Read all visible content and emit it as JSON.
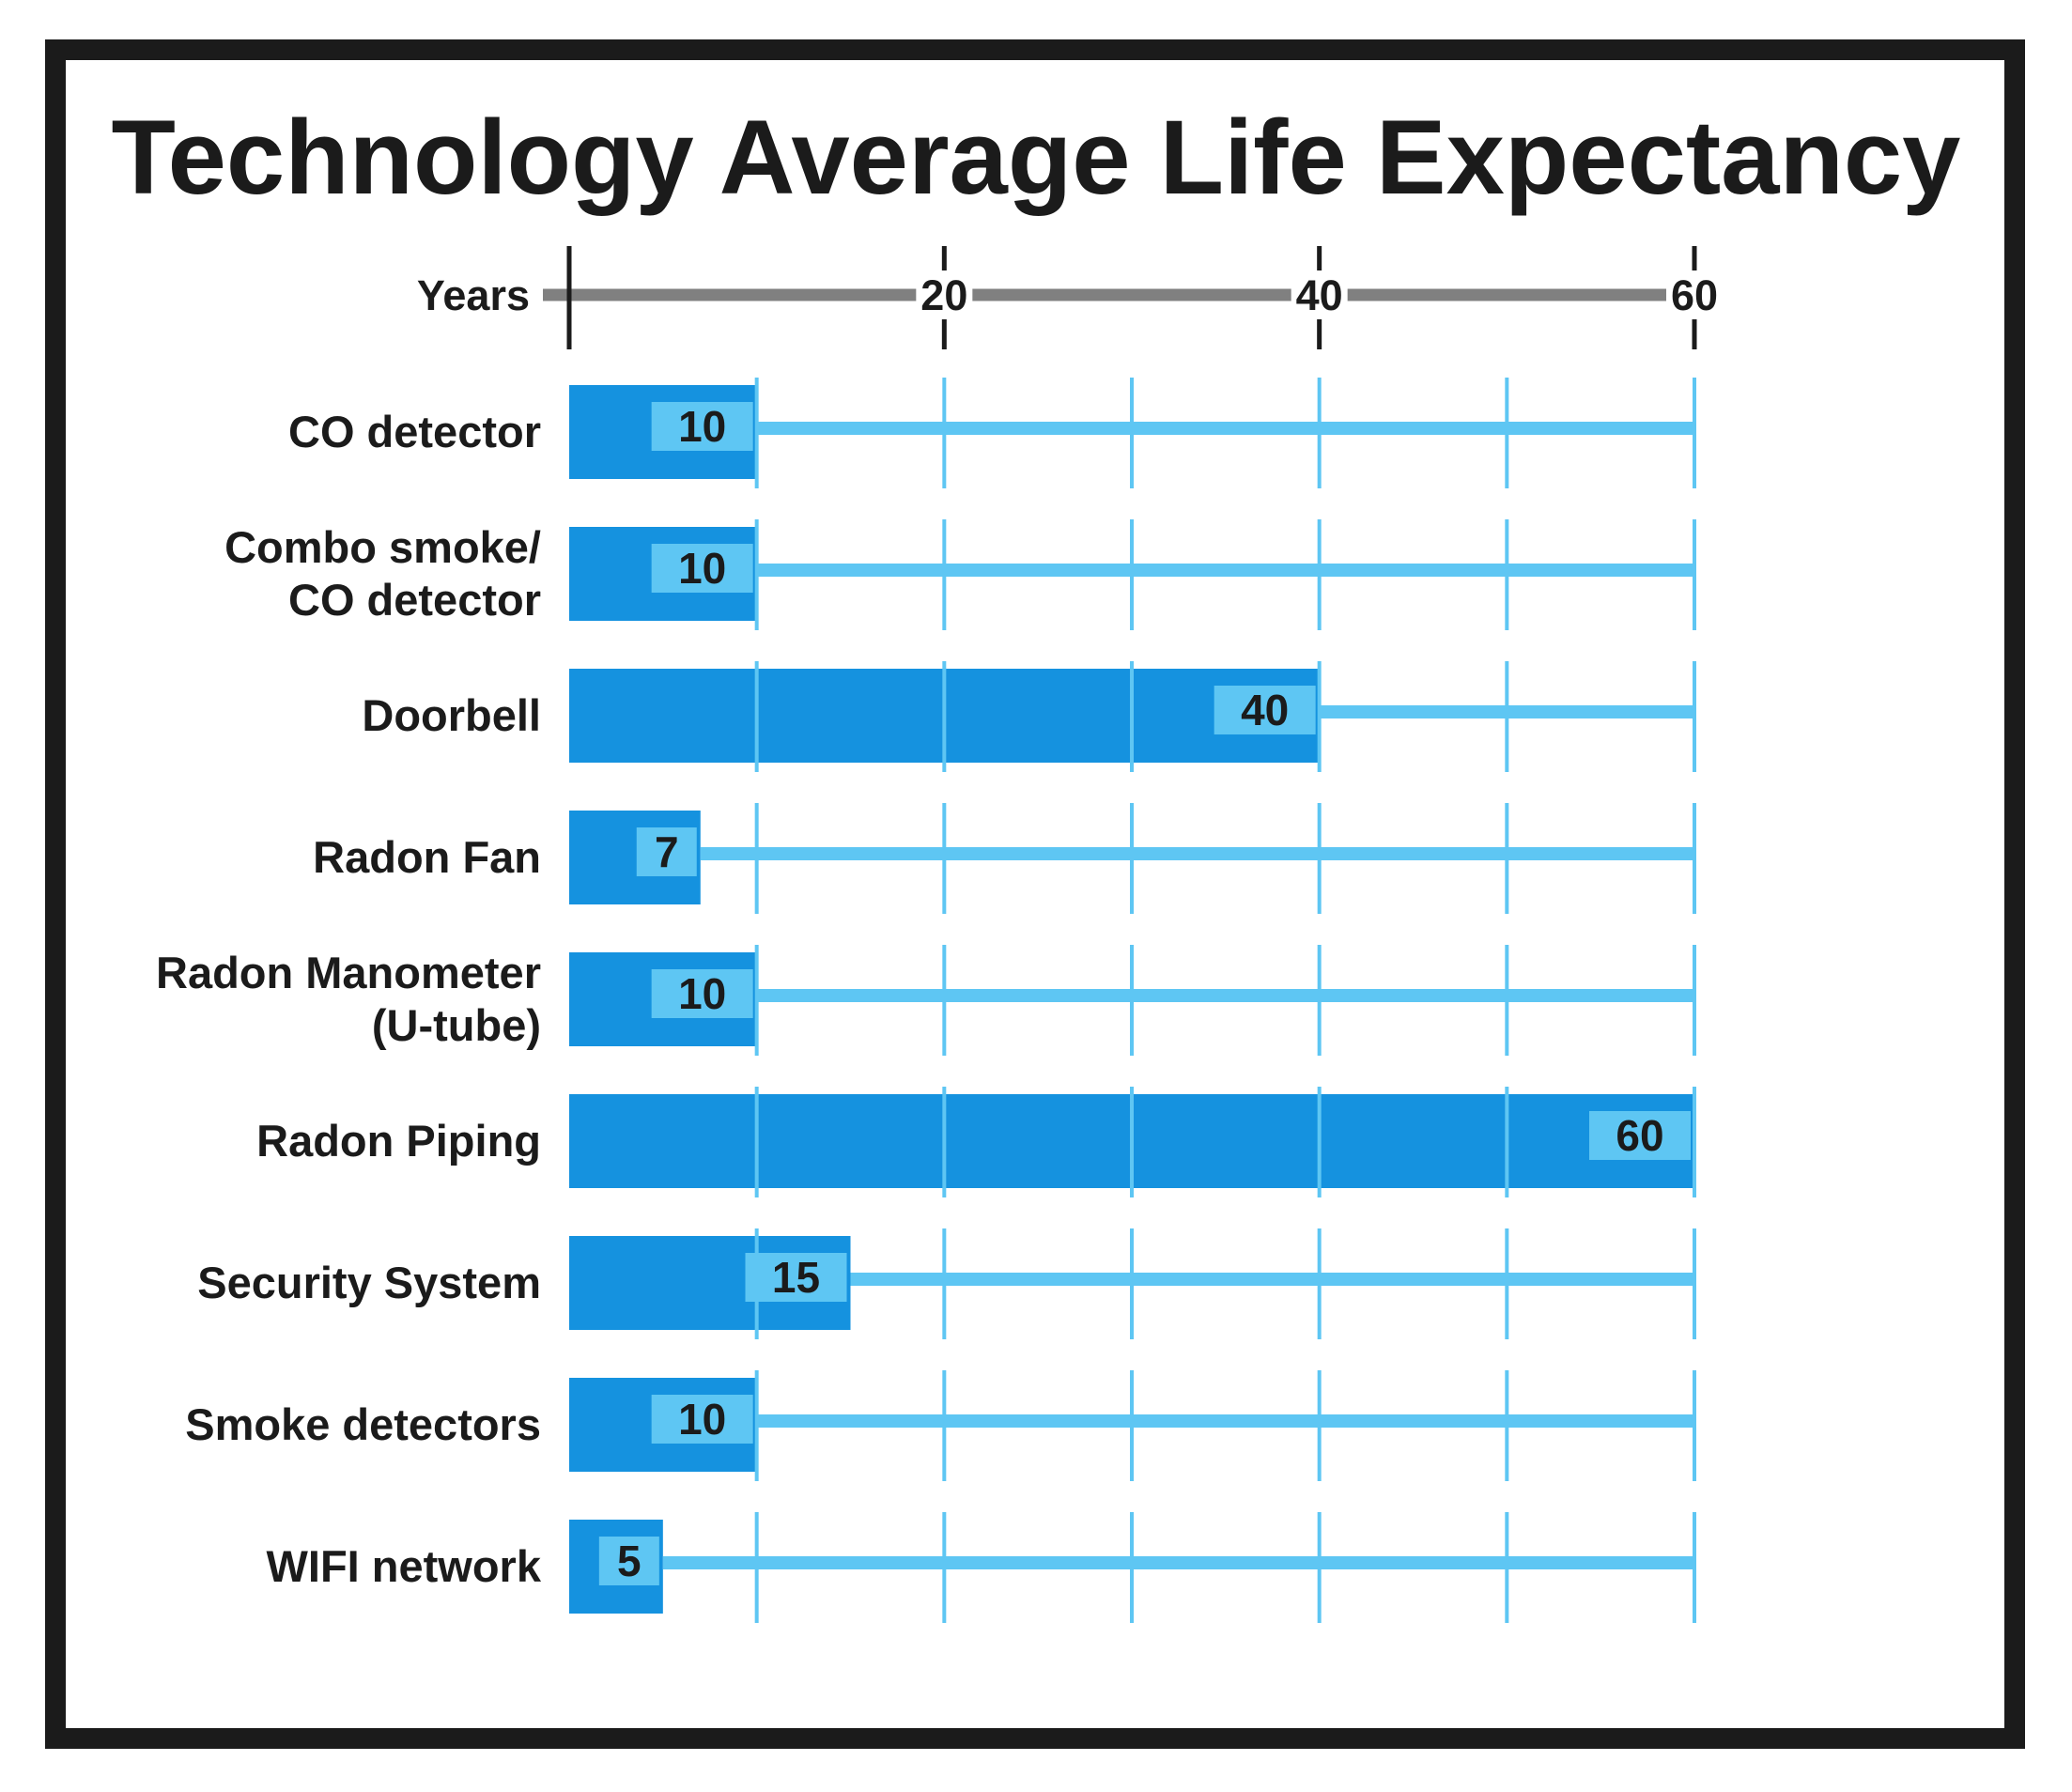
{
  "chart_data": {
    "type": "bar",
    "orientation": "horizontal",
    "title": "Technology Average Life Expectancy",
    "xlabel": "Years",
    "ylabel": "",
    "xlim": [
      0,
      60
    ],
    "major_ticks": [
      20,
      40,
      60
    ],
    "minor_gridlines": [
      10,
      20,
      30,
      40,
      50,
      60
    ],
    "legend": "none",
    "grid": true,
    "categories": [
      [
        "CO detector"
      ],
      [
        "Combo smoke/",
        "CO detector"
      ],
      [
        "Doorbell"
      ],
      [
        "Radon Fan"
      ],
      [
        "Radon Manometer",
        "(U-tube)"
      ],
      [
        "Radon Piping"
      ],
      [
        "Security System"
      ],
      [
        "Smoke detectors"
      ],
      [
        "WIFI network"
      ]
    ],
    "values": [
      10,
      10,
      40,
      7,
      10,
      60,
      15,
      10,
      5
    ],
    "value_labels": [
      "10",
      "10",
      "40",
      "7",
      "10",
      "60",
      "15",
      "10",
      "5"
    ],
    "colors": {
      "bar": "#1592df",
      "label_box": "#5ec6f3",
      "gridline": "#5ec6f3",
      "axis": "#808080",
      "text": "#1b1b1b",
      "frame": "#1b1b1b"
    }
  }
}
